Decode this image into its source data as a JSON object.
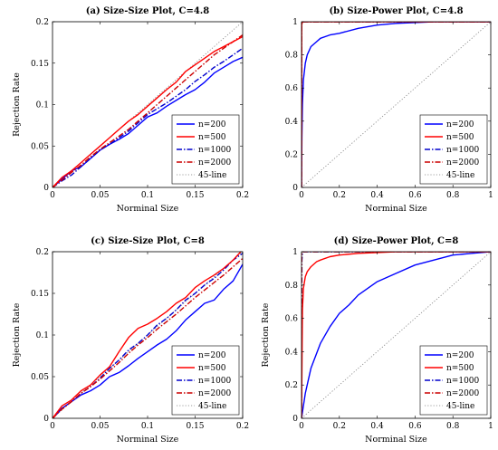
{
  "figure": {
    "background": "#ffffff"
  },
  "legend_entries": [
    {
      "label": "n=200",
      "color": "#0000ff",
      "dash": "solid"
    },
    {
      "label": "n=500",
      "color": "#ff0000",
      "dash": "solid"
    },
    {
      "label": "n=1000",
      "color": "#0000cc",
      "dash": "dashdot"
    },
    {
      "label": "n=2000",
      "color": "#cc0000",
      "dash": "dashdot"
    },
    {
      "label": "45-line",
      "color": "#808080",
      "dash": "dotted"
    }
  ],
  "chart_data": [
    {
      "type": "line",
      "title": "(a) Size-Size Plot, C=4.8",
      "xlabel": "Norminal Size",
      "ylabel": "Rejection Rate",
      "xlim": [
        0,
        0.2
      ],
      "ylim": [
        0,
        0.2
      ],
      "xticks": [
        0,
        0.05,
        0.1,
        0.15,
        0.2
      ],
      "yticks": [
        0,
        0.05,
        0.1,
        0.15,
        0.2
      ],
      "xticklabels": [
        "0",
        "0.05",
        "0.1",
        "0.15",
        "0.2"
      ],
      "yticklabels": [
        "0",
        "0.05",
        "0.1",
        "0.15",
        "0.2"
      ],
      "legend_position": "bottom-right",
      "series": [
        {
          "name": "n=200",
          "x": [
            0,
            0.01,
            0.02,
            0.03,
            0.04,
            0.05,
            0.06,
            0.07,
            0.08,
            0.09,
            0.1,
            0.11,
            0.12,
            0.13,
            0.14,
            0.15,
            0.16,
            0.17,
            0.18,
            0.19,
            0.2
          ],
          "y": [
            0,
            0.01,
            0.02,
            0.025,
            0.035,
            0.045,
            0.052,
            0.058,
            0.065,
            0.075,
            0.085,
            0.09,
            0.098,
            0.105,
            0.112,
            0.118,
            0.127,
            0.138,
            0.145,
            0.152,
            0.157
          ]
        },
        {
          "name": "n=500",
          "x": [
            0,
            0.01,
            0.02,
            0.03,
            0.04,
            0.05,
            0.06,
            0.07,
            0.08,
            0.09,
            0.1,
            0.11,
            0.12,
            0.13,
            0.14,
            0.15,
            0.16,
            0.17,
            0.18,
            0.19,
            0.2
          ],
          "y": [
            0,
            0.012,
            0.02,
            0.03,
            0.04,
            0.05,
            0.06,
            0.07,
            0.08,
            0.088,
            0.098,
            0.108,
            0.118,
            0.127,
            0.14,
            0.148,
            0.156,
            0.164,
            0.17,
            0.176,
            0.182
          ]
        },
        {
          "name": "n=1000",
          "x": [
            0,
            0.01,
            0.02,
            0.03,
            0.04,
            0.05,
            0.06,
            0.07,
            0.08,
            0.09,
            0.1,
            0.11,
            0.12,
            0.13,
            0.14,
            0.15,
            0.16,
            0.17,
            0.18,
            0.19,
            0.2
          ],
          "y": [
            0,
            0.008,
            0.015,
            0.025,
            0.035,
            0.045,
            0.052,
            0.06,
            0.068,
            0.078,
            0.088,
            0.095,
            0.102,
            0.11,
            0.118,
            0.128,
            0.136,
            0.145,
            0.152,
            0.16,
            0.168
          ]
        },
        {
          "name": "n=2000",
          "x": [
            0,
            0.01,
            0.02,
            0.03,
            0.04,
            0.05,
            0.06,
            0.07,
            0.08,
            0.09,
            0.1,
            0.11,
            0.12,
            0.13,
            0.14,
            0.15,
            0.16,
            0.17,
            0.18,
            0.19,
            0.2
          ],
          "y": [
            0,
            0.009,
            0.018,
            0.027,
            0.037,
            0.046,
            0.054,
            0.062,
            0.07,
            0.08,
            0.09,
            0.1,
            0.11,
            0.12,
            0.13,
            0.14,
            0.15,
            0.16,
            0.168,
            0.176,
            0.184
          ]
        },
        {
          "name": "45-line",
          "x": [
            0,
            0.2
          ],
          "y": [
            0,
            0.2
          ]
        }
      ]
    },
    {
      "type": "line",
      "title": "(b) Size-Power Plot, C=4.8",
      "xlabel": "Norminal Size",
      "ylabel": "",
      "xlim": [
        0,
        1
      ],
      "ylim": [
        0,
        1
      ],
      "xticks": [
        0,
        0.2,
        0.4,
        0.6,
        0.8,
        1
      ],
      "yticks": [
        0,
        0.2,
        0.4,
        0.6,
        0.8,
        1
      ],
      "xticklabels": [
        "0",
        "0.2",
        "0.4",
        "0.6",
        "0.8",
        "1"
      ],
      "yticklabels": [
        "0",
        "0.2",
        "0.4",
        "0.6",
        "0.8",
        "1"
      ],
      "legend_position": "bottom-right",
      "series": [
        {
          "name": "n=200",
          "x": [
            0,
            0.002,
            0.005,
            0.01,
            0.02,
            0.03,
            0.05,
            0.08,
            0.1,
            0.15,
            0.2,
            0.3,
            0.4,
            0.5,
            0.6,
            0.7,
            0.75,
            0.8,
            1
          ],
          "y": [
            0,
            0.3,
            0.5,
            0.65,
            0.75,
            0.8,
            0.85,
            0.88,
            0.9,
            0.92,
            0.93,
            0.96,
            0.98,
            0.99,
            0.995,
            1,
            1,
            1,
            1
          ]
        },
        {
          "name": "n=500",
          "x": [
            0,
            0.001,
            0.005,
            1
          ],
          "y": [
            0,
            0.98,
            1,
            1
          ]
        },
        {
          "name": "n=1000",
          "x": [
            0,
            0.001,
            0.003,
            1
          ],
          "y": [
            0,
            0.99,
            1,
            1
          ]
        },
        {
          "name": "n=2000",
          "x": [
            0,
            0.001,
            0.002,
            1
          ],
          "y": [
            0,
            0.995,
            1,
            1
          ]
        },
        {
          "name": "45-line",
          "x": [
            0,
            1
          ],
          "y": [
            0,
            1
          ]
        }
      ]
    },
    {
      "type": "line",
      "title": "(c) Size-Size Plot, C=8",
      "xlabel": "Norminal Size",
      "ylabel": "Rejection Rate",
      "xlim": [
        0,
        0.2
      ],
      "ylim": [
        0,
        0.2
      ],
      "xticks": [
        0,
        0.05,
        0.1,
        0.15,
        0.2
      ],
      "yticks": [
        0,
        0.05,
        0.1,
        0.15,
        0.2
      ],
      "xticklabels": [
        "0",
        "0.05",
        "0.1",
        "0.15",
        "0.2"
      ],
      "yticklabels": [
        "0",
        "0.05",
        "0.1",
        "0.15",
        "0.2"
      ],
      "legend_position": "bottom-right",
      "series": [
        {
          "name": "n=200",
          "x": [
            0,
            0.01,
            0.02,
            0.03,
            0.04,
            0.05,
            0.06,
            0.07,
            0.08,
            0.09,
            0.1,
            0.11,
            0.12,
            0.13,
            0.14,
            0.15,
            0.16,
            0.17,
            0.18,
            0.19,
            0.2
          ],
          "y": [
            0,
            0.012,
            0.02,
            0.028,
            0.033,
            0.04,
            0.05,
            0.055,
            0.063,
            0.072,
            0.08,
            0.088,
            0.095,
            0.105,
            0.118,
            0.128,
            0.138,
            0.142,
            0.155,
            0.165,
            0.185
          ]
        },
        {
          "name": "n=500",
          "x": [
            0,
            0.01,
            0.02,
            0.03,
            0.04,
            0.05,
            0.06,
            0.07,
            0.08,
            0.09,
            0.1,
            0.11,
            0.12,
            0.13,
            0.14,
            0.15,
            0.16,
            0.17,
            0.18,
            0.19,
            0.198
          ],
          "y": [
            0,
            0.015,
            0.022,
            0.033,
            0.04,
            0.052,
            0.062,
            0.08,
            0.097,
            0.108,
            0.113,
            0.12,
            0.128,
            0.138,
            0.145,
            0.157,
            0.165,
            0.172,
            0.18,
            0.19,
            0.2
          ]
        },
        {
          "name": "n=1000",
          "x": [
            0,
            0.01,
            0.02,
            0.03,
            0.04,
            0.05,
            0.06,
            0.07,
            0.08,
            0.09,
            0.1,
            0.11,
            0.12,
            0.13,
            0.14,
            0.15,
            0.16,
            0.17,
            0.18,
            0.19,
            0.2
          ],
          "y": [
            0,
            0.012,
            0.02,
            0.03,
            0.038,
            0.048,
            0.06,
            0.07,
            0.082,
            0.09,
            0.1,
            0.112,
            0.12,
            0.13,
            0.142,
            0.15,
            0.16,
            0.168,
            0.178,
            0.19,
            0.198
          ]
        },
        {
          "name": "n=2000",
          "x": [
            0,
            0.01,
            0.02,
            0.03,
            0.04,
            0.05,
            0.06,
            0.07,
            0.08,
            0.09,
            0.1,
            0.11,
            0.12,
            0.13,
            0.14,
            0.15,
            0.16,
            0.17,
            0.18,
            0.19,
            0.2
          ],
          "y": [
            0,
            0.011,
            0.02,
            0.03,
            0.038,
            0.047,
            0.057,
            0.067,
            0.078,
            0.088,
            0.097,
            0.107,
            0.116,
            0.125,
            0.135,
            0.145,
            0.154,
            0.163,
            0.172,
            0.182,
            0.192
          ]
        },
        {
          "name": "45-line",
          "x": [
            0,
            0.2
          ],
          "y": [
            0,
            0.2
          ]
        }
      ]
    },
    {
      "type": "line",
      "title": "(d) Size-Power Plot, C=8",
      "xlabel": "Norminal Size",
      "ylabel": "Rejection Rate",
      "xlim": [
        0,
        1
      ],
      "ylim": [
        0,
        1
      ],
      "xticks": [
        0,
        0.2,
        0.4,
        0.6,
        0.8,
        1
      ],
      "yticks": [
        0,
        0.2,
        0.4,
        0.6,
        0.8,
        1
      ],
      "xticklabels": [
        "0",
        "0.2",
        "0.4",
        "0.6",
        "0.8",
        "1"
      ],
      "yticklabels": [
        "0",
        "0.2",
        "0.4",
        "0.6",
        "0.8",
        "1"
      ],
      "legend_position": "bottom-right",
      "series": [
        {
          "name": "n=200",
          "x": [
            0,
            0.02,
            0.05,
            0.1,
            0.15,
            0.2,
            0.25,
            0.3,
            0.4,
            0.5,
            0.6,
            0.7,
            0.8,
            0.9,
            1
          ],
          "y": [
            0,
            0.15,
            0.3,
            0.45,
            0.55,
            0.63,
            0.68,
            0.74,
            0.82,
            0.87,
            0.92,
            0.95,
            0.98,
            0.99,
            1
          ]
        },
        {
          "name": "n=500",
          "x": [
            0,
            0.005,
            0.01,
            0.02,
            0.03,
            0.05,
            0.08,
            0.1,
            0.15,
            0.2,
            0.3,
            0.4,
            0.5,
            0.6,
            0.7,
            1
          ],
          "y": [
            0,
            0.65,
            0.78,
            0.85,
            0.88,
            0.91,
            0.94,
            0.95,
            0.97,
            0.98,
            0.99,
            0.995,
            1,
            1,
            1,
            1
          ]
        },
        {
          "name": "n=1000",
          "x": [
            0,
            0.002,
            0.005,
            0.01,
            1
          ],
          "y": [
            0,
            0.95,
            0.99,
            1,
            1
          ]
        },
        {
          "name": "n=2000",
          "x": [
            0,
            0.001,
            0.004,
            1
          ],
          "y": [
            0,
            0.98,
            1,
            1
          ]
        },
        {
          "name": "45-line",
          "x": [
            0,
            1
          ],
          "y": [
            0,
            1
          ]
        }
      ]
    }
  ]
}
